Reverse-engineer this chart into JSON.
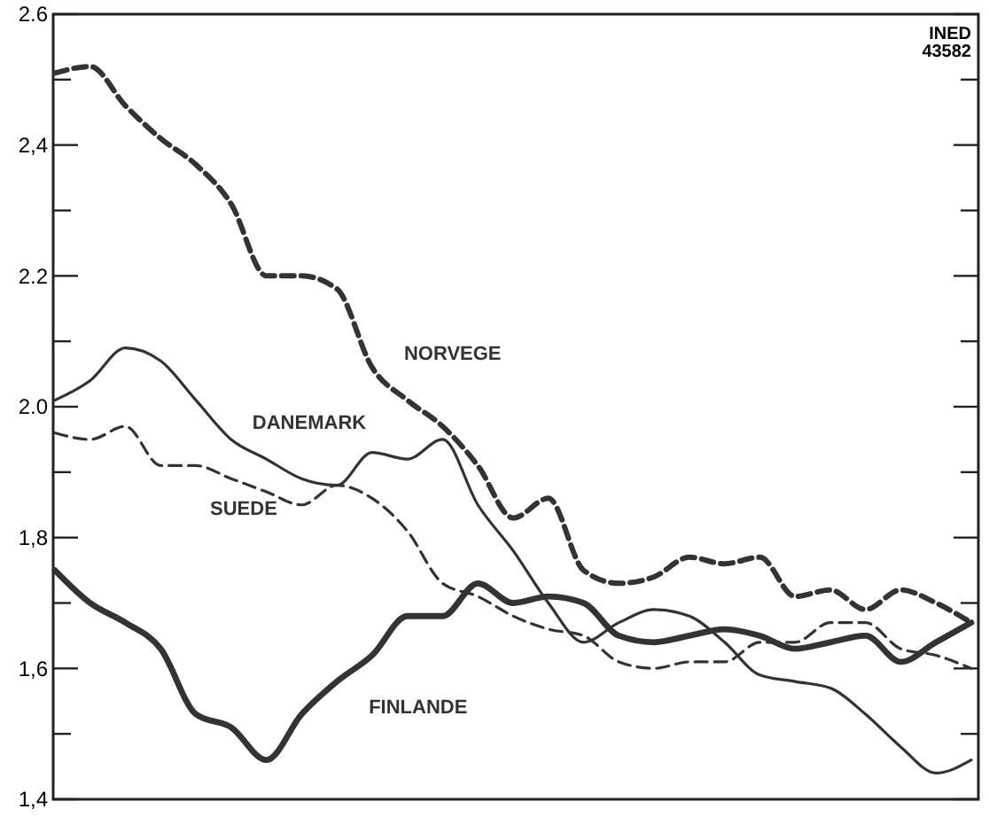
{
  "chart_data": {
    "type": "line",
    "categories": [
      null,
      null,
      null,
      null,
      null,
      null,
      null,
      null,
      null,
      null,
      null,
      null,
      null,
      null,
      null,
      null,
      null,
      null,
      null,
      null,
      null,
      null,
      null,
      null,
      null,
      null,
      null
    ],
    "series": [
      {
        "name": "NORVEGE",
        "color": "#333333",
        "line_style": "dashed",
        "values": [
          2.51,
          2.52,
          2.46,
          2.41,
          2.37,
          2.31,
          2.2,
          2.2,
          2.18,
          2.06,
          2.01,
          1.97,
          1.91,
          1.83,
          1.86,
          1.75,
          1.73,
          1.74,
          1.77,
          1.76,
          1.77,
          1.71,
          1.72,
          1.69,
          1.72,
          1.7,
          1.67
        ]
      },
      {
        "name": "DANEMARK",
        "color": "#333333",
        "line_style": "solid",
        "values": [
          2.01,
          2.04,
          2.09,
          2.07,
          2.01,
          1.95,
          1.92,
          1.89,
          1.88,
          1.93,
          1.92,
          1.95,
          1.85,
          1.78,
          1.7,
          1.64,
          1.67,
          1.69,
          1.68,
          1.64,
          1.59,
          1.58,
          1.57,
          1.53,
          1.48,
          1.44,
          1.46
        ]
      },
      {
        "name": "SUEDE",
        "color": "#333333",
        "line_style": "dashed",
        "values": [
          1.96,
          1.95,
          1.97,
          1.91,
          1.91,
          1.89,
          1.87,
          1.85,
          1.88,
          1.86,
          1.81,
          1.73,
          1.71,
          1.68,
          1.66,
          1.65,
          1.61,
          1.6,
          1.61,
          1.61,
          1.64,
          1.64,
          1.67,
          1.67,
          1.63,
          1.62,
          1.6
        ]
      },
      {
        "name": "FINLANDE",
        "color": "#333333",
        "line_style": "solid",
        "values": [
          1.75,
          1.7,
          1.67,
          1.63,
          1.53,
          1.51,
          1.46,
          1.53,
          1.58,
          1.62,
          1.68,
          1.68,
          1.73,
          1.7,
          1.71,
          1.7,
          1.65,
          1.64,
          1.65,
          1.66,
          1.65,
          1.63,
          1.64,
          1.65,
          1.61,
          1.64,
          1.67
        ]
      }
    ],
    "ylim": [
      1.4,
      2.6
    ],
    "yticks": [
      {
        "value": 1.4,
        "label": "1,4"
      },
      {
        "value": 1.5,
        "label": null
      },
      {
        "value": 1.6,
        "label": "1,6"
      },
      {
        "value": 1.7,
        "label": null
      },
      {
        "value": 1.8,
        "label": "1,8"
      },
      {
        "value": 1.9,
        "label": null
      },
      {
        "value": 2.0,
        "label": "2.0"
      },
      {
        "value": 2.1,
        "label": null
      },
      {
        "value": 2.2,
        "label": "2.2"
      },
      {
        "value": 2.3,
        "label": null
      },
      {
        "value": 2.4,
        "label": "2,4"
      },
      {
        "value": 2.5,
        "label": null
      },
      {
        "value": 2.6,
        "label": "2.6"
      }
    ],
    "tick_labels": "y",
    "grid": false,
    "legend": false,
    "marker": "none",
    "annotations": [
      "INED 43582"
    ]
  }
}
